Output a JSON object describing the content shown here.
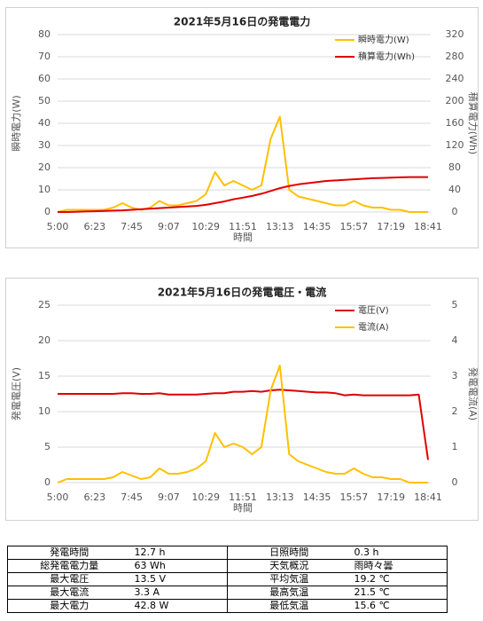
{
  "chart_data": [
    {
      "type": "line",
      "title": "2021年5月16日の発電電力",
      "x_label": "時間",
      "y_label": "瞬時電力(W)",
      "y2_label": "積算電力(Wh)",
      "categories": [
        "5:00",
        null,
        null,
        null,
        "6:23",
        null,
        null,
        null,
        "7:45",
        null,
        null,
        null,
        "9:07",
        null,
        null,
        null,
        "10:29",
        null,
        null,
        null,
        "11:51",
        null,
        null,
        null,
        "13:13",
        null,
        null,
        null,
        "14:35",
        null,
        null,
        null,
        "15:57",
        null,
        null,
        null,
        "17:19",
        null,
        null,
        null,
        "18:41"
      ],
      "series": [
        {
          "name": "瞬時電力(W)",
          "color": "#ffc000",
          "axis": "y",
          "values": [
            0,
            1,
            1,
            1,
            1,
            1,
            2,
            4,
            2,
            1,
            2,
            5,
            3,
            3,
            4,
            5,
            8,
            18,
            12,
            14,
            12,
            10,
            12,
            33,
            43,
            10,
            7,
            6,
            5,
            4,
            3,
            3,
            5,
            3,
            2,
            2,
            1,
            1,
            0,
            0,
            0
          ]
        },
        {
          "name": "積算電力(Wh)",
          "color": "#e00000",
          "axis": "y2",
          "values": [
            0,
            0,
            0.5,
            1,
            1.5,
            2,
            2.5,
            3,
            4,
            5,
            6,
            7,
            8,
            9,
            10,
            11,
            13,
            16,
            19,
            23,
            26,
            29,
            33,
            38,
            43,
            47,
            50,
            52,
            54,
            56,
            57,
            58,
            59,
            60,
            61,
            61.5,
            62,
            62.5,
            63,
            63,
            63
          ]
        }
      ],
      "ylim": [
        0,
        80
      ],
      "yticks": [
        0,
        10,
        20,
        30,
        40,
        50,
        60,
        70,
        80
      ],
      "y2lim": [
        0,
        320
      ],
      "y2ticks": [
        0,
        40,
        80,
        120,
        160,
        200,
        240,
        280,
        320
      ],
      "grid": true,
      "legend": "upper right"
    },
    {
      "type": "line",
      "title": "2021年5月16日の発電電圧・電流",
      "x_label": "時間",
      "y_label": "発電電圧(V)",
      "y2_label": "発電電流(A)",
      "categories": [
        "5:00",
        null,
        null,
        null,
        "6:23",
        null,
        null,
        null,
        "7:45",
        null,
        null,
        null,
        "9:07",
        null,
        null,
        null,
        "10:29",
        null,
        null,
        null,
        "11:51",
        null,
        null,
        null,
        "13:13",
        null,
        null,
        null,
        "14:35",
        null,
        null,
        null,
        "15:57",
        null,
        null,
        null,
        "17:19",
        null,
        null,
        null,
        "18:41"
      ],
      "series": [
        {
          "name": "電圧(V)",
          "color": "#e00000",
          "axis": "y",
          "values": [
            12.5,
            12.5,
            12.5,
            12.5,
            12.5,
            12.5,
            12.5,
            12.6,
            12.6,
            12.5,
            12.5,
            12.6,
            12.4,
            12.4,
            12.4,
            12.4,
            12.5,
            12.6,
            12.6,
            12.8,
            12.8,
            12.9,
            12.8,
            13.0,
            13.1,
            13.0,
            12.9,
            12.8,
            12.7,
            12.7,
            12.6,
            12.3,
            12.4,
            12.3,
            12.3,
            12.3,
            12.3,
            12.3,
            12.3,
            12.4,
            3.2
          ]
        },
        {
          "name": "電流(A)",
          "color": "#ffc000",
          "axis": "y2",
          "values": [
            0,
            0.1,
            0.1,
            0.1,
            0.1,
            0.1,
            0.15,
            0.3,
            0.2,
            0.1,
            0.15,
            0.4,
            0.25,
            0.25,
            0.3,
            0.4,
            0.6,
            1.4,
            1.0,
            1.1,
            1.0,
            0.8,
            1.0,
            2.6,
            3.3,
            0.8,
            0.6,
            0.5,
            0.4,
            0.3,
            0.25,
            0.25,
            0.4,
            0.25,
            0.15,
            0.15,
            0.1,
            0.1,
            0,
            0,
            0
          ]
        }
      ],
      "ylim": [
        0,
        25
      ],
      "yticks": [
        0,
        5,
        10,
        15,
        20,
        25
      ],
      "y2lim": [
        0,
        5
      ],
      "y2ticks": [
        0,
        1,
        2,
        3,
        4,
        5
      ],
      "grid": true,
      "legend": "upper right"
    }
  ],
  "table": {
    "rows": [
      [
        "発電時間",
        "12.7 h",
        "日照時間",
        "0.3 h"
      ],
      [
        "総発電電力量",
        "63 Wh",
        "天気概況",
        "雨時々曇"
      ],
      [
        "最大電圧",
        "13.5 V",
        "平均気温",
        "19.2 ℃"
      ],
      [
        "最大電流",
        "3.3 A",
        "最高気温",
        "21.5 ℃"
      ],
      [
        "最大電力",
        "42.8 W",
        "最低気温",
        "15.6 ℃"
      ]
    ]
  }
}
